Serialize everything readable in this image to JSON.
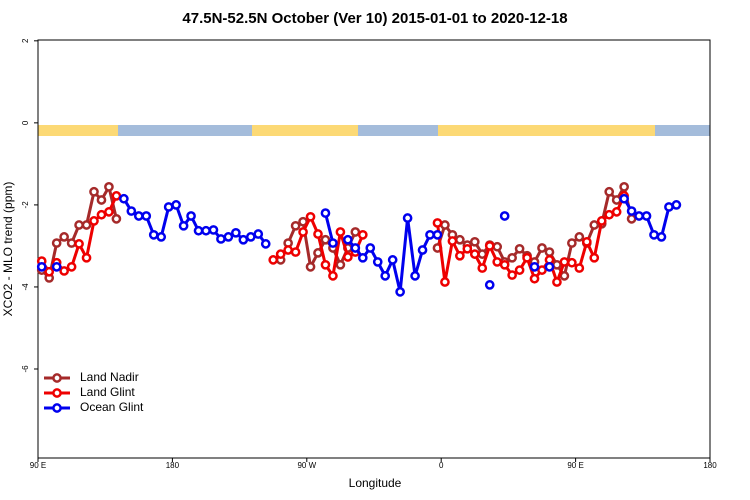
{
  "chart_data": {
    "type": "line",
    "title": "47.5N-52.5N October (Ver 10)   2015-01-01 to 2020-12-18",
    "x_label": "Longitude",
    "y_label": "XCO2 - MLO trend (ppm)",
    "x": [
      92.5,
      97.5,
      102.5,
      107.5,
      112.5,
      117.5,
      122.5,
      127.5,
      132.5,
      137.5,
      142.5,
      147.5,
      152.5,
      157.5,
      162.5,
      167.5,
      172.5,
      177.5,
      182.5,
      187.5,
      192.5,
      197.5,
      202.5,
      207.5,
      212.5,
      217.5,
      222.5,
      227.5,
      232.5,
      237.5,
      242.5,
      247.5,
      252.5,
      257.5,
      262.5,
      267.5,
      272.5,
      277.5,
      282.5,
      287.5,
      292.5,
      297.5,
      302.5,
      307.5,
      312.5,
      317.5,
      322.5,
      327.5,
      332.5,
      337.5,
      342.5,
      347.5,
      352.5,
      357.5,
      362.5,
      367.5,
      372.5,
      377.5,
      382.5,
      387.5,
      392.5,
      397.5,
      402.5,
      407.5,
      412.5,
      417.5,
      422.5,
      427.5,
      432.5,
      437.5,
      442.5,
      447.5,
      452.5,
      457.5,
      462.5,
      467.5,
      472.5,
      477.5,
      482.5,
      487.5,
      492.5,
      497.5,
      502.5,
      507.5,
      512.5,
      517.5,
      522.5,
      527.5,
      532.5,
      537.5
    ],
    "series": [
      {
        "name": "Land Nadir",
        "color": "#a52a2a",
        "values": [
          -3.59,
          -3.78,
          -2.93,
          -2.78,
          -2.93,
          -2.49,
          -2.49,
          -1.68,
          -1.88,
          -1.56,
          -2.34,
          null,
          null,
          null,
          null,
          null,
          null,
          null,
          null,
          null,
          null,
          null,
          null,
          null,
          null,
          null,
          null,
          null,
          null,
          null,
          null,
          null,
          -3.34,
          -2.93,
          -2.51,
          -2.41,
          -3.51,
          -3.17,
          -2.85,
          -3.05,
          -3.46,
          -3.05,
          -2.66,
          null,
          null,
          null,
          null,
          null,
          null,
          null,
          null,
          null,
          null,
          -3.05,
          -2.49,
          -2.73,
          -2.85,
          -2.98,
          -2.9,
          -3.2,
          -2.98,
          -3.02,
          -3.39,
          -3.29,
          -3.07,
          -3.24,
          -3.39,
          -3.05,
          -3.15,
          -3.46,
          -3.73,
          -2.93,
          -2.78,
          -2.93,
          -2.49,
          -2.46,
          -1.68,
          -1.88,
          -1.56,
          -2.34,
          null,
          null,
          null,
          null,
          null,
          null,
          null,
          null,
          null,
          null
        ]
      },
      {
        "name": "Land Glint",
        "color": "#ee0000",
        "values": [
          -3.37,
          -3.63,
          -3.41,
          -3.61,
          -3.51,
          -2.95,
          -3.29,
          -2.39,
          -2.24,
          -2.17,
          -1.78,
          null,
          null,
          null,
          null,
          null,
          null,
          null,
          null,
          null,
          null,
          null,
          null,
          null,
          null,
          null,
          null,
          null,
          null,
          null,
          null,
          -3.34,
          -3.2,
          -3.1,
          -3.15,
          -2.66,
          -2.29,
          -2.71,
          -3.46,
          -3.73,
          -2.66,
          -3.27,
          -3.15,
          -2.73,
          null,
          null,
          null,
          null,
          null,
          null,
          null,
          null,
          null,
          -2.44,
          -3.88,
          -2.88,
          -3.24,
          -3.07,
          -3.2,
          -3.54,
          -3.0,
          -3.39,
          -3.46,
          -3.71,
          -3.59,
          -3.29,
          -3.8,
          -3.59,
          -3.34,
          -3.88,
          -3.39,
          -3.41,
          -3.54,
          -2.9,
          -3.29,
          -2.39,
          -2.24,
          -2.17,
          -1.78,
          null,
          null,
          null,
          null,
          null,
          null,
          null,
          null,
          null,
          null,
          null
        ]
      },
      {
        "name": "Ocean Glint",
        "color": "#0000ee",
        "values": [
          -3.51,
          null,
          -3.51,
          null,
          null,
          null,
          null,
          null,
          null,
          null,
          null,
          -1.85,
          -2.15,
          -2.27,
          -2.27,
          -2.73,
          -2.78,
          -2.05,
          -2.0,
          -2.51,
          -2.27,
          -2.63,
          -2.63,
          -2.61,
          -2.83,
          -2.78,
          -2.68,
          -2.85,
          -2.78,
          -2.71,
          -2.95,
          null,
          null,
          null,
          null,
          null,
          null,
          null,
          -2.2,
          -2.93,
          null,
          -2.85,
          -3.05,
          -3.29,
          -3.05,
          -3.39,
          -3.73,
          -3.34,
          -4.12,
          -2.32,
          -3.73,
          -3.1,
          -2.73,
          -2.73,
          null,
          null,
          null,
          null,
          null,
          null,
          -3.95,
          null,
          -2.27,
          null,
          null,
          null,
          -3.51,
          null,
          -3.51,
          null,
          null,
          null,
          null,
          null,
          null,
          null,
          null,
          null,
          -1.85,
          -2.15,
          -2.27,
          -2.27,
          -2.73,
          -2.78,
          -2.05,
          -2.0,
          null,
          null,
          null,
          null
        ]
      }
    ],
    "xlim": [
      90,
      540
    ],
    "xticks": [
      {
        "value": 90,
        "label": "90 E"
      },
      {
        "value": 180,
        "label": "180"
      },
      {
        "value": 270,
        "label": "90 W"
      },
      {
        "value": 360,
        "label": "0"
      },
      {
        "value": 450,
        "label": "90 E"
      },
      {
        "value": 540,
        "label": "180"
      }
    ],
    "ylim": [
      -8.17,
      2.02
    ],
    "yticks": [
      2,
      0,
      -2,
      -4,
      -6
    ],
    "grid": false,
    "legend": "bottom-left"
  }
}
